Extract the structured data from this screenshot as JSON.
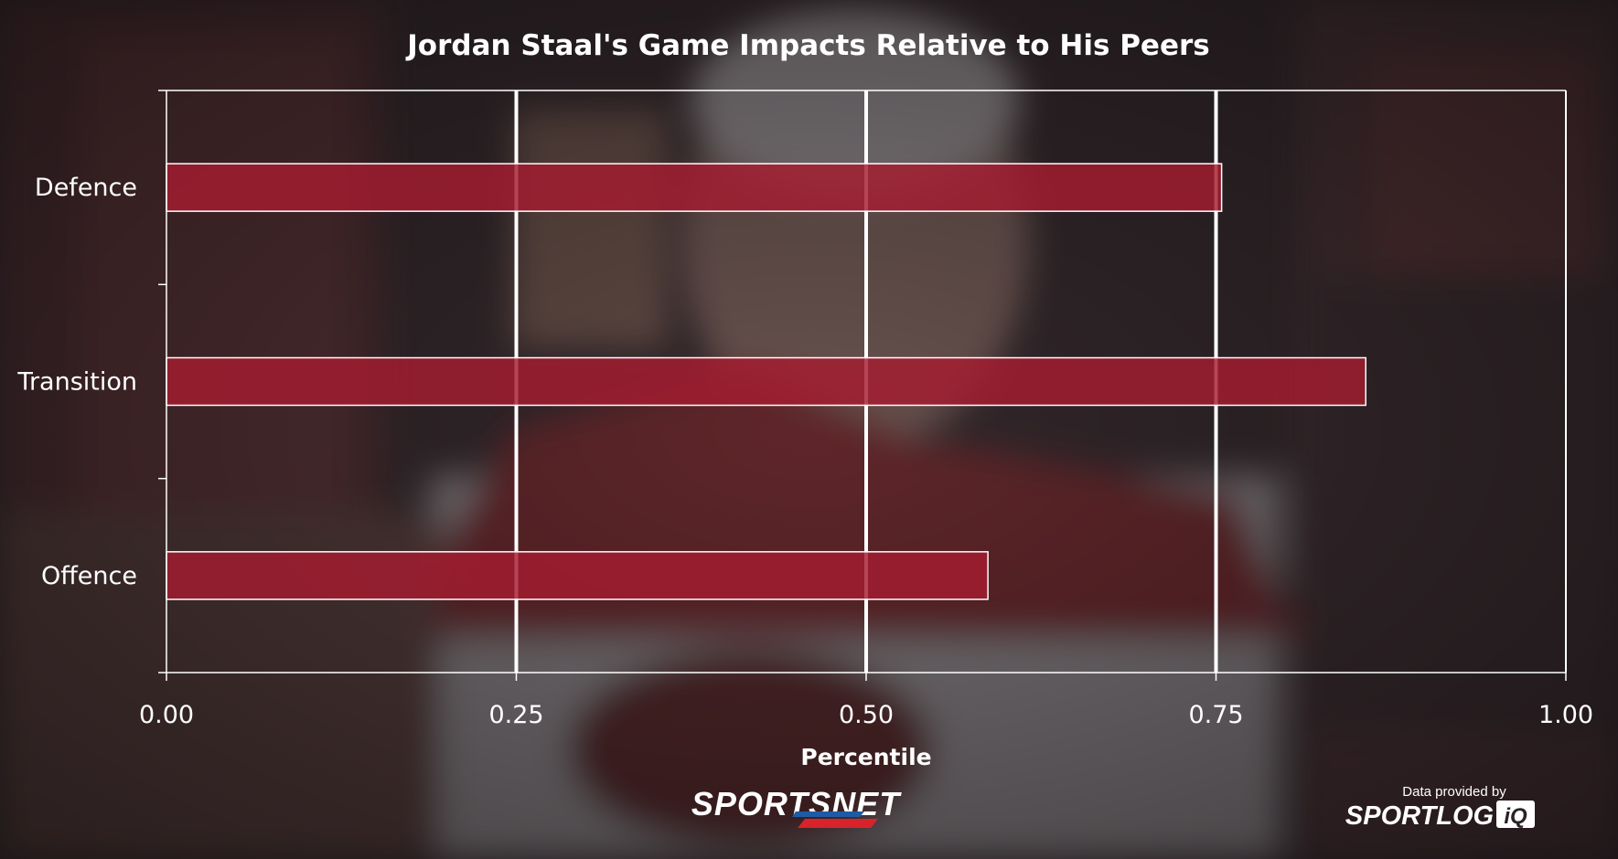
{
  "chart_data": {
    "type": "bar",
    "orientation": "horizontal",
    "title": "Jordan Staal's Game Impacts Relative to His Peers",
    "xlabel": "Percentile",
    "ylabel": "",
    "categories": [
      "Defence",
      "Transition",
      "Offence"
    ],
    "values": [
      0.754,
      0.857,
      0.587
    ],
    "xlim": [
      0,
      1
    ],
    "xticks": [
      "0.00",
      "0.25",
      "0.50",
      "0.75",
      "1.00"
    ],
    "grid": true,
    "bar_color": "#a51c30"
  },
  "branding": {
    "logo_left": "SPORTSNET",
    "credit_label": "Data provided by",
    "logo_right_main": "SPORTLOG",
    "logo_right_badge": "iQ"
  },
  "colors": {
    "background_overlay": "#2b2226",
    "bar": "#a51c30",
    "grid": "#ffffff"
  }
}
